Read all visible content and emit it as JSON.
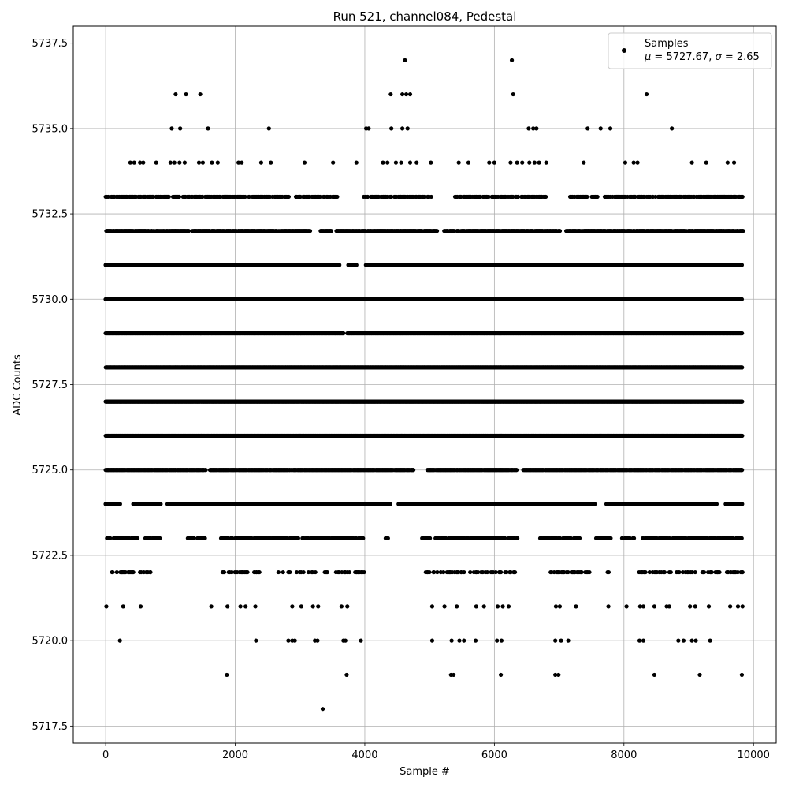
{
  "chart_data": {
    "type": "scatter",
    "title": "Run 521, channel084, Pedestal",
    "xlabel": "Sample #",
    "ylabel": "ADC Counts",
    "xlim": [
      -500,
      10350
    ],
    "ylim": [
      5717.0,
      5738.0
    ],
    "xticks": [
      0,
      2000,
      4000,
      6000,
      8000,
      10000
    ],
    "xtick_labels": [
      "0",
      "2000",
      "4000",
      "6000",
      "8000",
      "10000"
    ],
    "yticks": [
      5717.5,
      5720.0,
      5722.5,
      5725.0,
      5727.5,
      5730.0,
      5732.5,
      5735.0,
      5737.5
    ],
    "ytick_labels": [
      "5717.5",
      "5720.0",
      "5722.5",
      "5725.0",
      "5727.5",
      "5730.0",
      "5732.5",
      "5735.0",
      "5737.5"
    ],
    "grid": true,
    "legend": {
      "placement": "top-right",
      "line1": "Samples",
      "line2_prefix_mu": "μ",
      "line2_mid": " = 5727.67, ",
      "line2_sigma": "σ",
      "line2_suffix": " = 2.65"
    },
    "marker_color": "#000000",
    "series": [
      {
        "name": "Samples",
        "points": [
          [
            0,
            5733
          ],
          [
            1080,
            5736
          ],
          [
            1240,
            5736
          ],
          [
            1460,
            5736
          ],
          [
            4400,
            5736
          ],
          [
            4580,
            5736
          ],
          [
            4640,
            5736
          ],
          [
            4700,
            5736
          ],
          [
            6290,
            5736
          ],
          [
            8350,
            5736
          ],
          [
            4620,
            5737
          ],
          [
            6270,
            5737
          ],
          [
            1020,
            5735
          ],
          [
            1150,
            5735
          ],
          [
            1580,
            5735
          ],
          [
            2520,
            5735
          ],
          [
            4020,
            5735
          ],
          [
            4060,
            5735
          ],
          [
            4410,
            5735
          ],
          [
            4580,
            5735
          ],
          [
            4660,
            5735
          ],
          [
            6530,
            5735
          ],
          [
            6600,
            5735
          ],
          [
            6650,
            5735
          ],
          [
            7440,
            5735
          ],
          [
            7640,
            5735
          ],
          [
            7790,
            5735
          ],
          [
            8740,
            5735
          ],
          [
            380,
            5734
          ],
          [
            440,
            5734
          ],
          [
            530,
            5734
          ],
          [
            580,
            5734
          ],
          [
            780,
            5734
          ],
          [
            1000,
            5734
          ],
          [
            1060,
            5734
          ],
          [
            1140,
            5734
          ],
          [
            1220,
            5734
          ],
          [
            1440,
            5734
          ],
          [
            1500,
            5734
          ],
          [
            1640,
            5734
          ],
          [
            1730,
            5734
          ],
          [
            2050,
            5734
          ],
          [
            2100,
            5734
          ],
          [
            2400,
            5734
          ],
          [
            2550,
            5734
          ],
          [
            3070,
            5734
          ],
          [
            3510,
            5734
          ],
          [
            3870,
            5734
          ],
          [
            4280,
            5734
          ],
          [
            4350,
            5734
          ],
          [
            4480,
            5734
          ],
          [
            4560,
            5734
          ],
          [
            4700,
            5734
          ],
          [
            4800,
            5734
          ],
          [
            5020,
            5734
          ],
          [
            5450,
            5734
          ],
          [
            5600,
            5734
          ],
          [
            5920,
            5734
          ],
          [
            6000,
            5734
          ],
          [
            6250,
            5734
          ],
          [
            6350,
            5734
          ],
          [
            6430,
            5734
          ],
          [
            6540,
            5734
          ],
          [
            6620,
            5734
          ],
          [
            6690,
            5734
          ],
          [
            6800,
            5734
          ],
          [
            7380,
            5734
          ],
          [
            8020,
            5734
          ],
          [
            8150,
            5734
          ],
          [
            8210,
            5734
          ],
          [
            9050,
            5734
          ],
          [
            9270,
            5734
          ],
          [
            9600,
            5734
          ],
          [
            9700,
            5734
          ],
          [
            8300,
            5733
          ],
          [
            8390,
            5733
          ],
          [
            8720,
            5733
          ],
          [
            8860,
            5733
          ],
          [
            9200,
            5733
          ],
          [
            9400,
            5733
          ],
          [
            9550,
            5733
          ],
          [
            9710,
            5733
          ],
          [
            9830,
            5733
          ],
          [
            10,
            5732
          ],
          [
            9450,
            5732
          ],
          [
            9840,
            5732
          ],
          [
            9820,
            5731
          ],
          [
            9820,
            5730
          ],
          [
            9820,
            5729
          ],
          [
            9820,
            5728
          ],
          [
            9820,
            5727
          ],
          [
            9820,
            5726
          ],
          [
            9820,
            5725
          ],
          [
            9820,
            5724
          ],
          [
            9610,
            5723
          ],
          [
            9830,
            5722
          ],
          [
            9830,
            5721
          ],
          [
            9760,
            5721
          ],
          [
            10,
            5721
          ],
          [
            270,
            5721
          ],
          [
            540,
            5721
          ],
          [
            1630,
            5721
          ],
          [
            1880,
            5721
          ],
          [
            2080,
            5721
          ],
          [
            2160,
            5721
          ],
          [
            2310,
            5721
          ],
          [
            2880,
            5721
          ],
          [
            3020,
            5721
          ],
          [
            3200,
            5721
          ],
          [
            3280,
            5721
          ],
          [
            3640,
            5721
          ],
          [
            3730,
            5721
          ],
          [
            5040,
            5721
          ],
          [
            5230,
            5721
          ],
          [
            5420,
            5721
          ],
          [
            5720,
            5721
          ],
          [
            5840,
            5721
          ],
          [
            6050,
            5721
          ],
          [
            6130,
            5721
          ],
          [
            6220,
            5721
          ],
          [
            6950,
            5721
          ],
          [
            7010,
            5721
          ],
          [
            7260,
            5721
          ],
          [
            7760,
            5721
          ],
          [
            8040,
            5721
          ],
          [
            8250,
            5721
          ],
          [
            8300,
            5721
          ],
          [
            8470,
            5721
          ],
          [
            8660,
            5721
          ],
          [
            8700,
            5721
          ],
          [
            9020,
            5721
          ],
          [
            9100,
            5721
          ],
          [
            9310,
            5721
          ],
          [
            9640,
            5721
          ],
          [
            220,
            5720
          ],
          [
            2320,
            5720
          ],
          [
            2820,
            5720
          ],
          [
            2880,
            5720
          ],
          [
            2920,
            5720
          ],
          [
            3230,
            5720
          ],
          [
            3270,
            5720
          ],
          [
            3670,
            5720
          ],
          [
            3700,
            5720
          ],
          [
            3940,
            5720
          ],
          [
            5040,
            5720
          ],
          [
            5340,
            5720
          ],
          [
            5460,
            5720
          ],
          [
            5530,
            5720
          ],
          [
            5710,
            5720
          ],
          [
            6040,
            5720
          ],
          [
            6110,
            5720
          ],
          [
            6940,
            5720
          ],
          [
            7030,
            5720
          ],
          [
            7140,
            5720
          ],
          [
            8240,
            5720
          ],
          [
            8300,
            5720
          ],
          [
            8840,
            5720
          ],
          [
            8920,
            5720
          ],
          [
            9050,
            5720
          ],
          [
            9110,
            5720
          ],
          [
            9330,
            5720
          ],
          [
            1870,
            5719
          ],
          [
            3720,
            5719
          ],
          [
            5330,
            5719
          ],
          [
            5370,
            5719
          ],
          [
            6100,
            5719
          ],
          [
            6940,
            5719
          ],
          [
            6990,
            5719
          ],
          [
            8470,
            5719
          ],
          [
            9170,
            5719
          ],
          [
            9820,
            5719
          ],
          [
            3350,
            5718
          ]
        ],
        "dense_bands": [
          {
            "y": 5733,
            "x_from": 0,
            "x_to": 9830,
            "density": 0.55,
            "gaps": [
              [
                2830,
                2930
              ],
              [
                3600,
                3960
              ],
              [
                5040,
                5380
              ],
              [
                6800,
                7150
              ],
              [
                7600,
                7700
              ]
            ]
          },
          {
            "y": 5732,
            "x_from": 20,
            "x_to": 9840,
            "density": 0.8,
            "gaps": [
              [
                3160,
                3310
              ],
              [
                3500,
                3560
              ],
              [
                5120,
                5220
              ],
              [
                7020,
                7100
              ]
            ]
          },
          {
            "y": 5731,
            "x_from": 0,
            "x_to": 9820,
            "density": 0.95,
            "gaps": [
              [
                3620,
                3740
              ],
              [
                3880,
                4010
              ]
            ]
          },
          {
            "y": 5730,
            "x_from": 0,
            "x_to": 9820,
            "density": 1.0,
            "gaps": []
          },
          {
            "y": 5729,
            "x_from": 0,
            "x_to": 9830,
            "density": 1.0,
            "gaps": [
              [
                3680,
                3720
              ]
            ]
          },
          {
            "y": 5728,
            "x_from": 0,
            "x_to": 9830,
            "density": 1.0,
            "gaps": []
          },
          {
            "y": 5727,
            "x_from": 0,
            "x_to": 9830,
            "density": 1.0,
            "gaps": []
          },
          {
            "y": 5726,
            "x_from": 0,
            "x_to": 9830,
            "density": 1.0,
            "gaps": []
          },
          {
            "y": 5725,
            "x_from": 0,
            "x_to": 9830,
            "density": 0.95,
            "gaps": [
              [
                1550,
                1600
              ],
              [
                4760,
                4960
              ],
              [
                6350,
                6440
              ]
            ]
          },
          {
            "y": 5724,
            "x_from": 0,
            "x_to": 9830,
            "density": 0.8,
            "gaps": [
              [
                230,
                420
              ],
              [
                860,
                950
              ],
              [
                4400,
                4500
              ],
              [
                7560,
                7720
              ],
              [
                9440,
                9560
              ]
            ]
          },
          {
            "y": 5723,
            "x_from": 20,
            "x_to": 9830,
            "density": 0.5,
            "gaps": [
              [
                500,
                600
              ],
              [
                860,
                1240
              ],
              [
                1540,
                1760
              ],
              [
                3980,
                4320
              ],
              [
                4360,
                4880
              ],
              [
                6360,
                6650
              ],
              [
                7330,
                7560
              ],
              [
                7800,
                7960
              ],
              [
                8160,
                8280
              ]
            ]
          },
          {
            "y": 5722,
            "x_from": 100,
            "x_to": 9830,
            "density": 0.28,
            "gaps": [
              [
                700,
                1800
              ],
              [
                2400,
                2650
              ],
              [
                4000,
                4860
              ],
              [
                6330,
                6780
              ],
              [
                7500,
                7740
              ],
              [
                7800,
                8200
              ]
            ]
          }
        ]
      }
    ]
  }
}
